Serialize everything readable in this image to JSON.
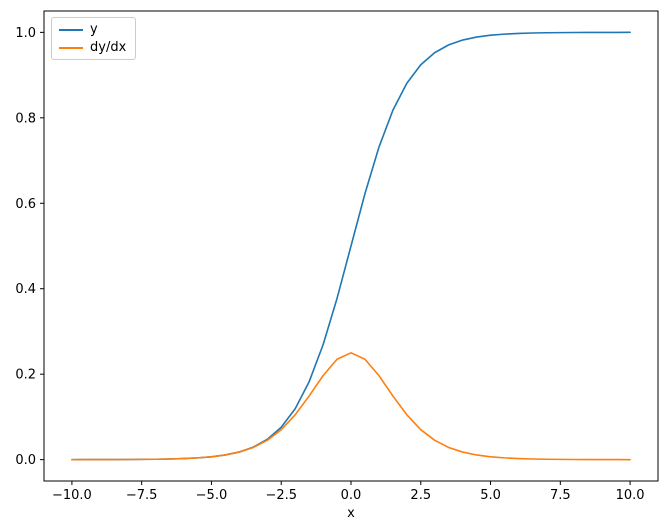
{
  "figure": {
    "background": "#ffffff"
  },
  "chart_data": {
    "type": "line",
    "title": "",
    "xlabel": "x",
    "ylabel": "",
    "grid": false,
    "xlim": [
      -11,
      11
    ],
    "ylim": [
      -0.05,
      1.05
    ],
    "x_ticks": [
      -10.0,
      -7.5,
      -5.0,
      -2.5,
      0.0,
      2.5,
      5.0,
      7.5,
      10.0
    ],
    "x_tick_labels": [
      "−10.0",
      "−7.5",
      "−5.0",
      "−2.5",
      "0.0",
      "2.5",
      "5.0",
      "7.5",
      "10.0"
    ],
    "y_ticks": [
      0.0,
      0.2,
      0.4,
      0.6,
      0.8,
      1.0
    ],
    "y_tick_labels": [
      "0.0",
      "0.2",
      "0.4",
      "0.6",
      "0.8",
      "1.0"
    ],
    "legend": {
      "position": "upper-left",
      "entries": [
        {
          "label": "y",
          "color": "#1f77b4"
        },
        {
          "label": "dy/dx",
          "color": "#ff7f0e"
        }
      ]
    },
    "x": [
      -10,
      -9.5,
      -9,
      -8.5,
      -8,
      -7.5,
      -7,
      -6.5,
      -6,
      -5.5,
      -5,
      -4.5,
      -4,
      -3.5,
      -3,
      -2.5,
      -2,
      -1.5,
      -1,
      -0.5,
      0,
      0.5,
      1,
      1.5,
      2,
      2.5,
      3,
      3.5,
      4,
      4.5,
      5,
      5.5,
      6,
      6.5,
      7,
      7.5,
      8,
      8.5,
      9,
      9.5,
      10
    ],
    "series": [
      {
        "name": "y",
        "color": "#1f77b4",
        "values": [
          0.0,
          0.0001,
          0.0001,
          0.0002,
          0.0003,
          0.0006,
          0.0009,
          0.0015,
          0.0025,
          0.0041,
          0.0067,
          0.011,
          0.018,
          0.0293,
          0.0474,
          0.0759,
          0.1192,
          0.1824,
          0.2689,
          0.3775,
          0.5,
          0.6225,
          0.7311,
          0.8176,
          0.8808,
          0.9241,
          0.9526,
          0.9707,
          0.982,
          0.989,
          0.9933,
          0.9959,
          0.9975,
          0.9985,
          0.9991,
          0.9994,
          0.9997,
          0.9998,
          0.9999,
          0.9999,
          1.0
        ]
      },
      {
        "name": "dy/dx",
        "color": "#ff7f0e",
        "values": [
          0.0,
          0.0001,
          0.0001,
          0.0002,
          0.0003,
          0.0006,
          0.0009,
          0.0015,
          0.0025,
          0.0041,
          0.0066,
          0.0109,
          0.0177,
          0.0285,
          0.0452,
          0.0701,
          0.105,
          0.1491,
          0.1966,
          0.235,
          0.25,
          0.235,
          0.1966,
          0.1491,
          0.105,
          0.0701,
          0.0452,
          0.0285,
          0.0177,
          0.0109,
          0.0066,
          0.0041,
          0.0025,
          0.0015,
          0.0009,
          0.0006,
          0.0003,
          0.0002,
          0.0001,
          0.0001,
          0.0
        ]
      }
    ]
  }
}
